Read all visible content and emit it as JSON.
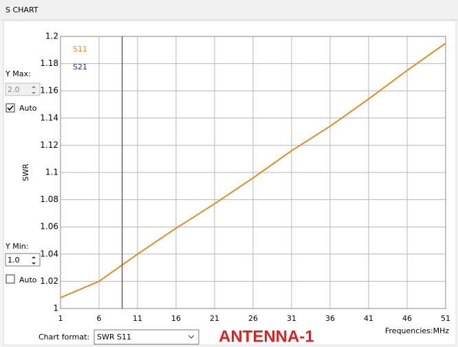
{
  "header": {
    "title": "S CHART"
  },
  "controls": {
    "y_max": {
      "label": "Y Max:",
      "value": "2.0",
      "auto_label": "Auto",
      "auto_checked": true
    },
    "y_min": {
      "label": "Y Min:",
      "value": "1.0",
      "auto_label": "Auto",
      "auto_checked": false
    },
    "chart_format": {
      "label": "Chart format:",
      "value": "SWR S11"
    },
    "antenna": "ANTENNA-1"
  },
  "chart_data": {
    "type": "line",
    "x": [
      1,
      6,
      11,
      16,
      21,
      26,
      31,
      36,
      41,
      46,
      51
    ],
    "series": [
      {
        "name": "S11",
        "color": "#e8891c",
        "values": [
          1.008,
          1.02,
          1.04,
          1.059,
          1.077,
          1.096,
          1.116,
          1.134,
          1.154,
          1.175,
          1.195
        ]
      },
      {
        "name": "S21",
        "color": "#1f2f9e",
        "values": [
          null,
          null,
          null,
          null,
          null,
          null,
          null,
          null,
          null,
          null,
          null
        ]
      }
    ],
    "xlim": [
      1,
      51
    ],
    "xticks": [
      1,
      6,
      11,
      16,
      21,
      26,
      31,
      36,
      41,
      46,
      51
    ],
    "ylim": [
      1,
      1.2
    ],
    "yticks": [
      1,
      1.02,
      1.04,
      1.06,
      1.08,
      1.1,
      1.12,
      1.14,
      1.16,
      1.18,
      1.2
    ],
    "ylabel": "SWR",
    "xlabel": "Frequencies:MHz",
    "grid": true,
    "marker": {
      "x": 9,
      "color": "#cc1111"
    }
  }
}
